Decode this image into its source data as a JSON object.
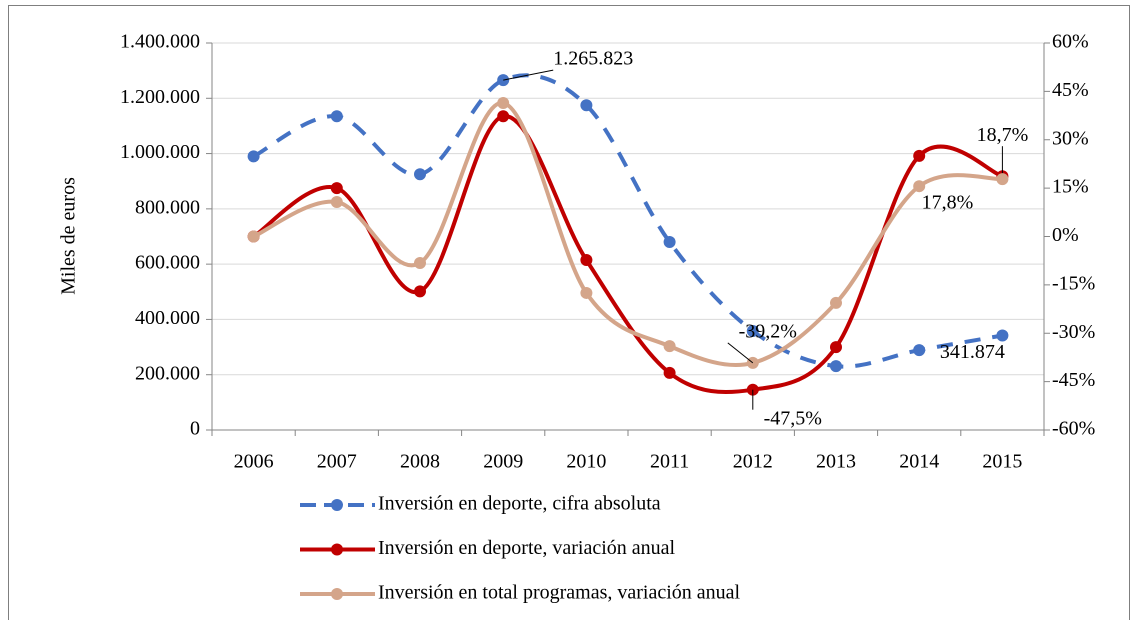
{
  "chart_data": {
    "type": "line",
    "y_label": "Miles de euros",
    "categories": [
      "2006",
      "2007",
      "2008",
      "2009",
      "2010",
      "2011",
      "2012",
      "2013",
      "2014",
      "2015"
    ],
    "series": [
      {
        "name": "Inversión en deporte, cifra absoluta",
        "color": "#4472c4",
        "dashed": true,
        "axis": "y",
        "values": [
          990000,
          1135000,
          925000,
          1265823,
          1175000,
          680000,
          358000,
          231000,
          289000,
          341874
        ],
        "value_labels": [
          null,
          null,
          null,
          "1.265.823",
          null,
          null,
          null,
          null,
          null,
          "341.874"
        ]
      },
      {
        "name": "Inversión en deporte, variación anual",
        "color": "#c00000",
        "dashed": false,
        "axis": "y2",
        "values": [
          0,
          15,
          -17,
          37.3,
          -7.3,
          -42.3,
          -47.5,
          -34.3,
          25,
          18.7
        ],
        "value_labels": [
          null,
          null,
          null,
          null,
          null,
          null,
          "-47,5%",
          null,
          null,
          "18,7%"
        ]
      },
      {
        "name": "Inversión en total programas, variación anual",
        "color": "#d4a58a",
        "dashed": false,
        "axis": "y2",
        "values": [
          0,
          10.7,
          -8.2,
          41.4,
          -17.5,
          -34,
          -39.2,
          -20.6,
          15.6,
          17.8
        ],
        "value_labels": [
          null,
          null,
          null,
          null,
          null,
          null,
          "-39,2%",
          null,
          null,
          "17,8%"
        ]
      }
    ],
    "ylim": [
      0,
      1400000
    ],
    "yticks": [
      0,
      {
        "value": 200000,
        "label": "200.000"
      },
      {
        "value": 400000,
        "label": "400.000"
      },
      {
        "value": 600000,
        "label": "600.000"
      },
      {
        "value": 800000,
        "label": "800.000"
      },
      {
        "value": 1000000,
        "label": "1.000.000"
      },
      {
        "value": 1200000,
        "label": "1.200.000"
      },
      {
        "value": 1400000,
        "label": "1.400.000"
      }
    ],
    "y2lim": [
      -60,
      60
    ],
    "y2ticks": [
      {
        "value": -60,
        "label": "-60%"
      },
      {
        "value": -45,
        "label": "-45%"
      },
      {
        "value": -30,
        "label": "-30%"
      },
      {
        "value": -15,
        "label": "-15%"
      },
      {
        "value": 0,
        "label": "0%"
      },
      {
        "value": 15,
        "label": "15%"
      },
      {
        "value": 30,
        "label": "30%"
      },
      {
        "value": 45,
        "label": "45%"
      },
      {
        "value": 60,
        "label": "60%"
      }
    ],
    "grid": true
  }
}
